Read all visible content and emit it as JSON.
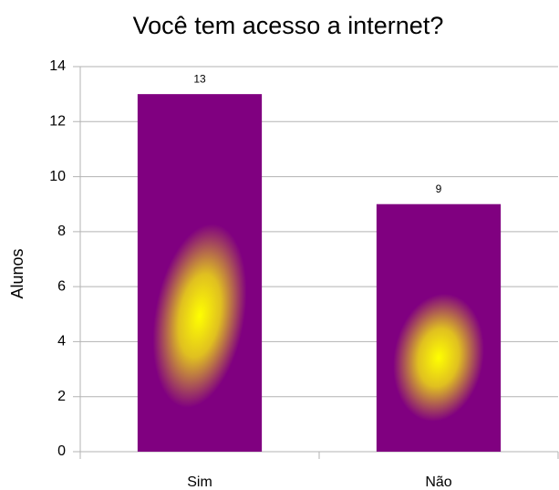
{
  "chart_data": {
    "type": "bar",
    "title": "Você tem acesso a internet?",
    "y_label": "Alunos",
    "categories": [
      "Sim",
      "Não"
    ],
    "values": [
      13,
      9
    ],
    "color": "#800080",
    "ylim": [
      0,
      14
    ],
    "yticks": [
      0,
      2,
      4,
      6,
      8,
      10,
      12,
      14
    ],
    "grid": true,
    "data_labels": true
  }
}
